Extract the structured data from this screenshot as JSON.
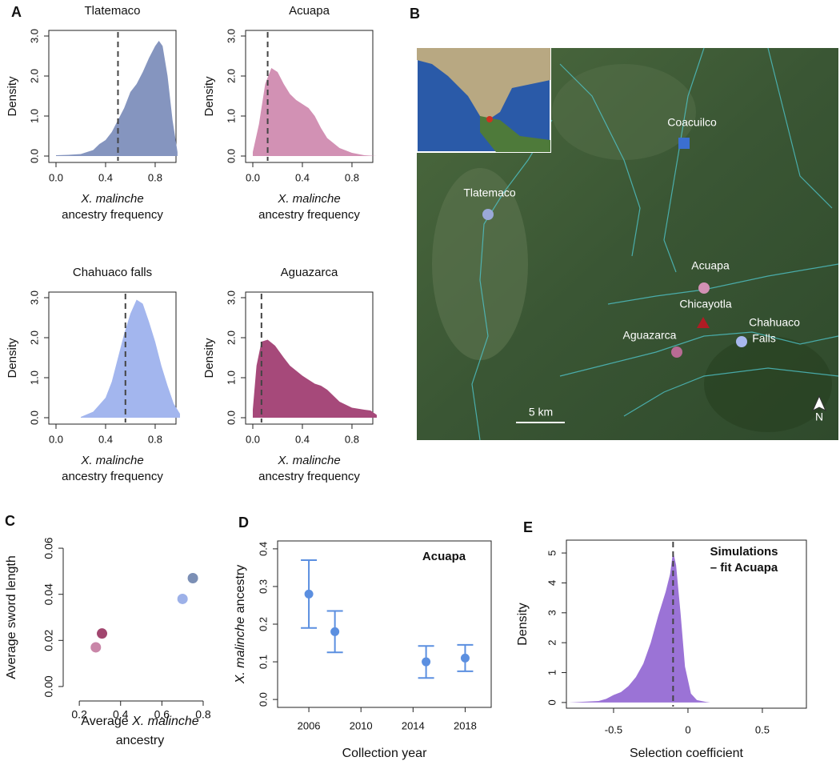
{
  "panel_labels": [
    "A",
    "B",
    "C",
    "D",
    "E"
  ],
  "chart_data": [
    {
      "type": "area",
      "title": "Tlatemaco",
      "ylabel": [
        [
          {
            "text": "Density"
          }
        ]
      ],
      "xlabel": [
        [
          {
            "text": "X. malinche",
            "style": "italic"
          }
        ],
        [
          {
            "text": "ancestry frequency"
          }
        ]
      ],
      "x": [
        0,
        0.1,
        0.2,
        0.3,
        0.35,
        0.4,
        0.45,
        0.5,
        0.55,
        0.6,
        0.65,
        0.7,
        0.75,
        0.8,
        0.83,
        0.86,
        0.9,
        0.94,
        0.98
      ],
      "values": [
        0.02,
        0.03,
        0.05,
        0.15,
        0.3,
        0.4,
        0.6,
        0.9,
        1.2,
        1.6,
        1.8,
        2.1,
        2.45,
        2.75,
        2.88,
        2.75,
        2.0,
        0.9,
        0.1
      ],
      "color": "#8595bf",
      "vline": 0.5,
      "box": true,
      "xlim": [
        -0.058,
        0.968
      ],
      "xticks": [
        {
          "value": 0,
          "label": "0.0"
        },
        0.4,
        0.8
      ],
      "ylim": [
        -0.16,
        3.14
      ],
      "yticks": [
        {
          "value": 0,
          "label": "0.0"
        },
        {
          "value": 1,
          "label": "1.0"
        },
        {
          "value": 2,
          "label": "2.0"
        },
        {
          "value": 3,
          "label": "3.0"
        }
      ]
    },
    {
      "type": "area",
      "title": "Acuapa",
      "ylabel": [
        [
          {
            "text": "Density"
          }
        ]
      ],
      "xlabel": [
        [
          {
            "text": "X. malinche",
            "style": "italic"
          }
        ],
        [
          {
            "text": "ancestry frequency"
          }
        ]
      ],
      "x": [
        0,
        0.05,
        0.1,
        0.15,
        0.2,
        0.25,
        0.3,
        0.35,
        0.4,
        0.45,
        0.5,
        0.55,
        0.6,
        0.7,
        0.8,
        0.9,
        1.0
      ],
      "values": [
        0.1,
        0.8,
        1.8,
        2.2,
        2.1,
        1.8,
        1.55,
        1.4,
        1.3,
        1.2,
        1.0,
        0.7,
        0.45,
        0.2,
        0.08,
        0.02,
        0
      ],
      "color": "#d291b4",
      "vline": 0.12,
      "box": true,
      "xlim": [
        -0.058,
        0.968
      ],
      "xticks": [
        {
          "value": 0,
          "label": "0.0"
        },
        0.4,
        0.8
      ],
      "ylim": [
        -0.16,
        3.14
      ],
      "yticks": [
        {
          "value": 0,
          "label": "0.0"
        },
        {
          "value": 1,
          "label": "1.0"
        },
        {
          "value": 2,
          "label": "2.0"
        },
        {
          "value": 3,
          "label": "3.0"
        }
      ]
    },
    {
      "type": "area",
      "title": "Chahuaco falls",
      "ylabel": [
        [
          {
            "text": "Density"
          }
        ]
      ],
      "xlabel": [
        [
          {
            "text": "X. malinche",
            "style": "italic"
          }
        ],
        [
          {
            "text": "ancestry frequency"
          }
        ]
      ],
      "x": [
        0.2,
        0.3,
        0.4,
        0.45,
        0.5,
        0.55,
        0.6,
        0.65,
        0.7,
        0.75,
        0.8,
        0.85,
        0.9,
        0.95,
        1.0
      ],
      "values": [
        0.02,
        0.15,
        0.5,
        0.9,
        1.5,
        2.1,
        2.6,
        2.95,
        2.85,
        2.4,
        1.9,
        1.3,
        0.8,
        0.35,
        0.1
      ],
      "color": "#a3b6ee",
      "vline": 0.56,
      "box": true,
      "xlim": [
        -0.058,
        0.968
      ],
      "xticks": [
        {
          "value": 0,
          "label": "0.0"
        },
        0.4,
        0.8
      ],
      "ylim": [
        -0.16,
        3.14
      ],
      "yticks": [
        {
          "value": 0,
          "label": "0.0"
        },
        {
          "value": 1,
          "label": "1.0"
        },
        {
          "value": 2,
          "label": "2.0"
        },
        {
          "value": 3,
          "label": "3.0"
        }
      ]
    },
    {
      "type": "area",
      "title": "Aguazarca",
      "ylabel": [
        [
          {
            "text": "Density"
          }
        ]
      ],
      "xlabel": [
        [
          {
            "text": "X. malinche",
            "style": "italic"
          }
        ],
        [
          {
            "text": "ancestry frequency"
          }
        ]
      ],
      "x": [
        0,
        0.03,
        0.07,
        0.12,
        0.18,
        0.25,
        0.3,
        0.4,
        0.5,
        0.55,
        0.6,
        0.65,
        0.7,
        0.8,
        0.9,
        0.95,
        1.0
      ],
      "values": [
        0.2,
        1.3,
        1.9,
        1.95,
        1.8,
        1.5,
        1.3,
        1.05,
        0.85,
        0.8,
        0.7,
        0.55,
        0.4,
        0.25,
        0.2,
        0.18,
        0.07
      ],
      "color": "#a6497a",
      "vline": 0.07,
      "box": true,
      "xlim": [
        -0.058,
        0.968
      ],
      "xticks": [
        {
          "value": 0,
          "label": "0.0"
        },
        0.4,
        0.8
      ],
      "ylim": [
        -0.16,
        3.14
      ],
      "yticks": [
        {
          "value": 0,
          "label": "0.0"
        },
        {
          "value": 1,
          "label": "1.0"
        },
        {
          "value": 2,
          "label": "2.0"
        },
        {
          "value": 3,
          "label": "3.0"
        }
      ]
    },
    {
      "type": "scatter",
      "box": false,
      "xlabel": [
        [
          {
            "text": "Average "
          },
          {
            "text": "X. malinche",
            "style": "italic"
          }
        ],
        [
          {
            "text": "ancestry"
          }
        ]
      ],
      "ylabel": [
        [
          {
            "text": "Average sword length"
          }
        ]
      ],
      "x": [
        0.28,
        0.31,
        0.7,
        0.75
      ],
      "values": [
        0.017,
        0.023,
        0.038,
        0.047
      ],
      "colors": [
        "#c986a8",
        "#a2466f",
        "#9db1e8",
        "#7b8fb5"
      ],
      "xlim": [
        0.153,
        0.835
      ],
      "xticks": [
        0.2,
        0.4,
        0.6,
        0.8
      ],
      "ylim": [
        -0.0035,
        0.0635
      ],
      "yticks": [
        {
          "value": 0,
          "label": "0.00"
        },
        0.02,
        0.04,
        0.06
      ]
    },
    {
      "type": "errorbar",
      "box": true,
      "annotation": [
        "Acuapa"
      ],
      "xlabel": [
        [
          {
            "text": "Collection year"
          }
        ]
      ],
      "ylabel": [
        [
          {
            "text": "X. malinche",
            "style": "italic"
          },
          {
            "text": " ancestry"
          }
        ]
      ],
      "x": [
        2006,
        2008,
        2015,
        2018
      ],
      "values": [
        0.28,
        0.18,
        0.1,
        0.11
      ],
      "lower": [
        0.19,
        0.125,
        0.057,
        0.075
      ],
      "upper": [
        0.37,
        0.235,
        0.142,
        0.145
      ],
      "color": "#5b8fe0",
      "xlim": [
        2003.6,
        2020
      ],
      "xticks": [
        2006,
        2010,
        2014,
        2018
      ],
      "ylim": [
        -0.021,
        0.421
      ],
      "yticks": [
        {
          "value": 0,
          "label": "0.0"
        },
        0.1,
        0.2,
        0.3,
        0.4
      ]
    },
    {
      "type": "area",
      "box": true,
      "annotation": [
        "Simulations",
        "– fit Acuapa"
      ],
      "xlabel": [
        [
          {
            "text": "Selection coefficient"
          }
        ]
      ],
      "ylabel": [
        [
          {
            "text": "Density"
          }
        ]
      ],
      "x": [
        -0.8,
        -0.6,
        -0.55,
        -0.5,
        -0.45,
        -0.4,
        -0.35,
        -0.3,
        -0.25,
        -0.2,
        -0.15,
        -0.12,
        -0.1,
        -0.08,
        -0.05,
        -0.02,
        0.02,
        0.06,
        0.12,
        0.15
      ],
      "values": [
        0,
        0.05,
        0.12,
        0.25,
        0.35,
        0.55,
        0.85,
        1.3,
        2.0,
        2.9,
        3.7,
        4.3,
        5.05,
        4.6,
        3.0,
        1.2,
        0.3,
        0.08,
        0.02,
        0
      ],
      "color": "#9b73d6",
      "vline": -0.1,
      "xlim": [
        -0.817,
        0.796
      ],
      "xticks": [
        -0.5,
        0,
        0.5
      ],
      "ylim": [
        -0.19,
        5.43
      ],
      "yticks": [
        0,
        1,
        2,
        3,
        4,
        5
      ]
    }
  ],
  "map": {
    "sites": [
      {
        "label": "Coacuilco"
      },
      {
        "label": "Tlatemaco"
      },
      {
        "label": "Acuapa"
      },
      {
        "label": "Chicayotla"
      },
      {
        "label": "Aguazarca"
      },
      {
        "label": [
          "Chahuaco",
          "Falls"
        ]
      }
    ],
    "scale": "5 km",
    "north": "N"
  }
}
